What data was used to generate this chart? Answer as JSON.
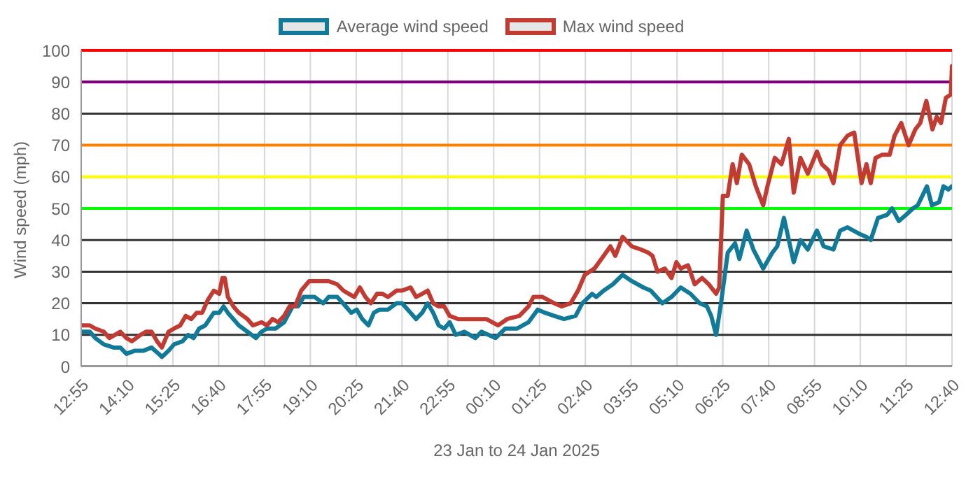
{
  "chart_data": {
    "type": "line",
    "xlabel": "23 Jan to 24 Jan 2025",
    "ylabel": "Wind speed (mph)",
    "xlim": [
      "2025-01-23T12:55",
      "2025-01-24T12:40"
    ],
    "xticks": [
      {
        "value": "2025-01-23T12:55",
        "label": "12:55"
      },
      {
        "value": "2025-01-23T14:10",
        "label": "14:10"
      },
      {
        "value": "2025-01-23T15:25",
        "label": "15:25"
      },
      {
        "value": "2025-01-23T16:40",
        "label": "16:40"
      },
      {
        "value": "2025-01-23T17:55",
        "label": "17:55"
      },
      {
        "value": "2025-01-23T19:10",
        "label": "19:10"
      },
      {
        "value": "2025-01-23T20:25",
        "label": "20:25"
      },
      {
        "value": "2025-01-23T21:40",
        "label": "21:40"
      },
      {
        "value": "2025-01-23T22:55",
        "label": "22:55"
      },
      {
        "value": "2025-01-24T00:10",
        "label": "00:10"
      },
      {
        "value": "2025-01-24T01:25",
        "label": "01:25"
      },
      {
        "value": "2025-01-24T02:40",
        "label": "02:40"
      },
      {
        "value": "2025-01-24T03:55",
        "label": "03:55"
      },
      {
        "value": "2025-01-24T05:10",
        "label": "05:10"
      },
      {
        "value": "2025-01-24T06:25",
        "label": "06:25"
      },
      {
        "value": "2025-01-24T07:40",
        "label": "07:40"
      },
      {
        "value": "2025-01-24T08:55",
        "label": "08:55"
      },
      {
        "value": "2025-01-24T10:10",
        "label": "10:10"
      },
      {
        "value": "2025-01-24T11:25",
        "label": "11:25"
      },
      {
        "value": "2025-01-24T12:40",
        "label": "12:40"
      }
    ],
    "ylim": [
      0,
      100
    ],
    "yticks": [
      0,
      10,
      20,
      30,
      40,
      50,
      60,
      70,
      80,
      90,
      100
    ],
    "grid": true,
    "legend": "top",
    "marker": "none",
    "line_style": "solid",
    "ref_lines": [
      {
        "axis": "y",
        "value": 100,
        "color": "#ff0000"
      },
      {
        "axis": "y",
        "value": 90,
        "color": "#800080"
      },
      {
        "axis": "y",
        "value": 70,
        "color": "#ff8000"
      },
      {
        "axis": "y",
        "value": 60,
        "color": "#ffff00"
      },
      {
        "axis": "y",
        "value": 50,
        "color": "#00ff00"
      }
    ],
    "series": [
      {
        "name": "Average wind speed",
        "color": "#117a99",
        "x": [
          "2025-01-23T12:55",
          "2025-01-23T13:09",
          "2025-01-23T13:18",
          "2025-01-23T13:32",
          "2025-01-23T13:48",
          "2025-01-23T13:59",
          "2025-01-23T14:09",
          "2025-01-23T14:23",
          "2025-01-23T14:37",
          "2025-01-23T14:50",
          "2025-01-23T15:02",
          "2025-01-23T15:07",
          "2025-01-23T15:18",
          "2025-01-23T15:27",
          "2025-01-23T15:41",
          "2025-01-23T15:50",
          "2025-01-23T15:59",
          "2025-01-23T16:08",
          "2025-01-23T16:18",
          "2025-01-23T16:32",
          "2025-01-23T16:41",
          "2025-01-23T16:48",
          "2025-01-23T16:55",
          "2025-01-23T17:04",
          "2025-01-23T17:13",
          "2025-01-23T17:27",
          "2025-01-23T17:41",
          "2025-01-23T17:50",
          "2025-01-23T17:59",
          "2025-01-23T18:13",
          "2025-01-23T18:27",
          "2025-01-23T18:41",
          "2025-01-23T18:50",
          "2025-01-23T18:59",
          "2025-01-23T19:17",
          "2025-01-23T19:31",
          "2025-01-23T19:40",
          "2025-01-23T19:54",
          "2025-01-23T20:08",
          "2025-01-23T20:17",
          "2025-01-23T20:26",
          "2025-01-23T20:35",
          "2025-01-23T20:45",
          "2025-01-23T20:54",
          "2025-01-23T21:03",
          "2025-01-23T21:17",
          "2025-01-23T21:31",
          "2025-01-23T21:40",
          "2025-01-23T21:54",
          "2025-01-23T22:03",
          "2025-01-23T22:13",
          "2025-01-23T22:22",
          "2025-01-23T22:31",
          "2025-01-23T22:40",
          "2025-01-23T22:49",
          "2025-01-23T22:58",
          "2025-01-23T23:08",
          "2025-01-23T23:22",
          "2025-01-23T23:31",
          "2025-01-23T23:40",
          "2025-01-23T23:50",
          "2025-01-24T00:13",
          "2025-01-24T00:29",
          "2025-01-24T00:48",
          "2025-01-24T01:07",
          "2025-01-24T01:22",
          "2025-01-24T01:34",
          "2025-01-24T01:49",
          "2025-01-24T02:05",
          "2025-01-24T02:24",
          "2025-01-24T02:35",
          "2025-01-24T02:51",
          "2025-01-24T02:58",
          "2025-01-24T03:10",
          "2025-01-24T03:25",
          "2025-01-24T03:41",
          "2025-01-24T03:56",
          "2025-01-24T04:15",
          "2025-01-24T04:27",
          "2025-01-24T04:46",
          "2025-01-24T05:01",
          "2025-01-24T05:16",
          "2025-01-24T05:32",
          "2025-01-24T05:47",
          "2025-01-24T05:59",
          "2025-01-24T06:06",
          "2025-01-24T06:14",
          "2025-01-24T06:22",
          "2025-01-24T06:33",
          "2025-01-24T06:45",
          "2025-01-24T06:52",
          "2025-01-24T07:04",
          "2025-01-24T07:15",
          "2025-01-24T07:31",
          "2025-01-24T07:46",
          "2025-01-24T07:54",
          "2025-01-24T08:05",
          "2025-01-24T08:21",
          "2025-01-24T08:32",
          "2025-01-24T08:44",
          "2025-01-24T08:59",
          "2025-01-24T09:10",
          "2025-01-24T09:26",
          "2025-01-24T09:37",
          "2025-01-24T09:49",
          "2025-01-24T10:08",
          "2025-01-24T10:20",
          "2025-01-24T10:27",
          "2025-01-24T10:39",
          "2025-01-24T10:54",
          "2025-01-24T11:02",
          "2025-01-24T11:13",
          "2025-01-24T11:25",
          "2025-01-24T11:36",
          "2025-01-24T11:44",
          "2025-01-24T11:59",
          "2025-01-24T12:07",
          "2025-01-24T12:19",
          "2025-01-24T12:26",
          "2025-01-24T12:34",
          "2025-01-24T12:40"
        ],
        "values": [
          11,
          11,
          9,
          7,
          6,
          6,
          4,
          5,
          5,
          6,
          4,
          3,
          5,
          7,
          8,
          10,
          9,
          12,
          13,
          17,
          17,
          19,
          17,
          15,
          13,
          11,
          9,
          11,
          12,
          12,
          14,
          19,
          19,
          22,
          22,
          20,
          22,
          22,
          19,
          17,
          18,
          15,
          13,
          17,
          18,
          18,
          20,
          20,
          17,
          15,
          17,
          20,
          17,
          13,
          12,
          14,
          10,
          11,
          10,
          9,
          11,
          9,
          12,
          12,
          14,
          18,
          17,
          16,
          15,
          16,
          20,
          23,
          22,
          24,
          26,
          29,
          27,
          25,
          24,
          20,
          22,
          25,
          23,
          20,
          19,
          16,
          10,
          20,
          36,
          39,
          34,
          43,
          37,
          31,
          36,
          38,
          47,
          33,
          40,
          37,
          43,
          38,
          37,
          43,
          44,
          42,
          41,
          40,
          47,
          48,
          50,
          46,
          48,
          50,
          51,
          57,
          51,
          52,
          57,
          56,
          57
        ]
      },
      {
        "name": "Max wind speed",
        "color": "#c23b33",
        "x": [
          "2025-01-23T12:55",
          "2025-01-23T13:09",
          "2025-01-23T13:18",
          "2025-01-23T13:32",
          "2025-01-23T13:41",
          "2025-01-23T13:50",
          "2025-01-23T13:59",
          "2025-01-23T14:09",
          "2025-01-23T14:18",
          "2025-01-23T14:32",
          "2025-01-23T14:41",
          "2025-01-23T14:50",
          "2025-01-23T14:59",
          "2025-01-23T15:07",
          "2025-01-23T15:18",
          "2025-01-23T15:27",
          "2025-01-23T15:37",
          "2025-01-23T15:46",
          "2025-01-23T15:55",
          "2025-01-23T16:04",
          "2025-01-23T16:13",
          "2025-01-23T16:22",
          "2025-01-23T16:32",
          "2025-01-23T16:41",
          "2025-01-23T16:46",
          "2025-01-23T16:50",
          "2025-01-23T16:55",
          "2025-01-23T17:04",
          "2025-01-23T17:13",
          "2025-01-23T17:27",
          "2025-01-23T17:36",
          "2025-01-23T17:50",
          "2025-01-23T17:59",
          "2025-01-23T18:08",
          "2025-01-23T18:17",
          "2025-01-23T18:27",
          "2025-01-23T18:36",
          "2025-01-23T18:45",
          "2025-01-23T18:55",
          "2025-01-23T19:08",
          "2025-01-23T19:22",
          "2025-01-23T19:40",
          "2025-01-23T19:54",
          "2025-01-23T20:04",
          "2025-01-23T20:13",
          "2025-01-23T20:22",
          "2025-01-23T20:31",
          "2025-01-23T20:40",
          "2025-01-23T20:49",
          "2025-01-23T20:59",
          "2025-01-23T21:08",
          "2025-01-23T21:17",
          "2025-01-23T21:31",
          "2025-01-23T21:40",
          "2025-01-23T21:54",
          "2025-01-23T22:03",
          "2025-01-23T22:13",
          "2025-01-23T22:22",
          "2025-01-23T22:31",
          "2025-01-23T22:40",
          "2025-01-23T22:49",
          "2025-01-23T22:58",
          "2025-01-23T23:12",
          "2025-01-23T23:26",
          "2025-01-23T23:35",
          "2025-01-23T23:58",
          "2025-01-24T00:17",
          "2025-01-24T00:32",
          "2025-01-24T00:52",
          "2025-01-24T01:07",
          "2025-01-24T01:15",
          "2025-01-24T01:30",
          "2025-01-24T01:49",
          "2025-01-24T02:01",
          "2025-01-24T02:16",
          "2025-01-24T02:28",
          "2025-01-24T02:39",
          "2025-01-24T02:55",
          "2025-01-24T03:10",
          "2025-01-24T03:21",
          "2025-01-24T03:29",
          "2025-01-24T03:41",
          "2025-01-24T03:56",
          "2025-01-24T04:11",
          "2025-01-24T04:23",
          "2025-01-24T04:30",
          "2025-01-24T04:38",
          "2025-01-24T04:50",
          "2025-01-24T05:01",
          "2025-01-24T05:09",
          "2025-01-24T05:16",
          "2025-01-24T05:28",
          "2025-01-24T05:39",
          "2025-01-24T05:51",
          "2025-01-24T06:02",
          "2025-01-24T06:14",
          "2025-01-24T06:19",
          "2025-01-24T06:25",
          "2025-01-24T06:33",
          "2025-01-24T06:41",
          "2025-01-24T06:48",
          "2025-01-24T06:56",
          "2025-01-24T07:08",
          "2025-01-24T07:19",
          "2025-01-24T07:31",
          "2025-01-24T07:38",
          "2025-01-24T07:50",
          "2025-01-24T08:01",
          "2025-01-24T08:13",
          "2025-01-24T08:21",
          "2025-01-24T08:32",
          "2025-01-24T08:44",
          "2025-01-24T08:59",
          "2025-01-24T09:07",
          "2025-01-24T09:18",
          "2025-01-24T09:26",
          "2025-01-24T09:37",
          "2025-01-24T09:49",
          "2025-01-24T10:00",
          "2025-01-24T10:12",
          "2025-01-24T10:20",
          "2025-01-24T10:27",
          "2025-01-24T10:35",
          "2025-01-24T10:46",
          "2025-01-24T10:58",
          "2025-01-24T11:06",
          "2025-01-24T11:17",
          "2025-01-24T11:29",
          "2025-01-24T11:40",
          "2025-01-24T11:48",
          "2025-01-24T11:58",
          "2025-01-24T12:08",
          "2025-01-24T12:15",
          "2025-01-24T12:22",
          "2025-01-24T12:30",
          "2025-01-24T12:38",
          "2025-01-24T12:40"
        ],
        "values": [
          13,
          13,
          12,
          11,
          9,
          10,
          11,
          9,
          8,
          10,
          11,
          11,
          8,
          6,
          11,
          12,
          13,
          16,
          15,
          17,
          17,
          21,
          24,
          23,
          28,
          28,
          22,
          19,
          17,
          15,
          13,
          14,
          13,
          15,
          14,
          16,
          19,
          19,
          24,
          27,
          27,
          27,
          26,
          24,
          23,
          22,
          25,
          22,
          20,
          23,
          23,
          22,
          24,
          24,
          25,
          22,
          23,
          24,
          20,
          19,
          19,
          16,
          15,
          15,
          15,
          15,
          13,
          15,
          16,
          19,
          22,
          22,
          20,
          19,
          20,
          24,
          29,
          31,
          35,
          38,
          35,
          41,
          38,
          37,
          36,
          35,
          30,
          31,
          28,
          33,
          31,
          32,
          26,
          28,
          26,
          23,
          25,
          54,
          54,
          64,
          58,
          67,
          64,
          57,
          51,
          57,
          66,
          64,
          72,
          55,
          66,
          61,
          68,
          64,
          62,
          58,
          70,
          73,
          74,
          58,
          64,
          58,
          66,
          67,
          67,
          73,
          77,
          70,
          75,
          77,
          84,
          75,
          79,
          77,
          85,
          86,
          95
        ]
      }
    ]
  }
}
